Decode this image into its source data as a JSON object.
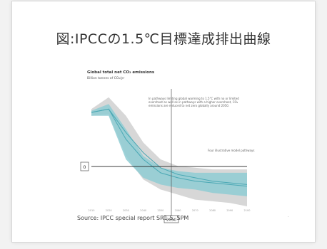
{
  "slide": {
    "title": "図:IPCCの1.5℃目標達成排出曲線",
    "source": "Source: IPCC special report SR1.5, SPM"
  },
  "colors": {
    "teal": "#4aa8b4",
    "teal_band": "#8fcdd4",
    "grey_band": "#d7d7d7",
    "accent_text": "#2a8fa0"
  },
  "chart_data": {
    "type": "area",
    "title": "Global total net CO₂ emissions",
    "ylabel": "Billion tonnes of CO₂/yr",
    "x": [
      2010,
      2020,
      2030,
      2040,
      2050,
      2060,
      2070,
      2080,
      2090,
      2100
    ],
    "xlim": [
      2010,
      2100
    ],
    "ylim": [
      -20,
      50
    ],
    "grid": false,
    "y_reference_label": "0",
    "x_reference_label": "2050",
    "annotation_top": "In pathways limiting global warming to 1.5°C with no or limited overshoot as well as in pathways with a higher overshoot, CO₂ emissions are reduced to net zero globally around 2050.",
    "annotation_four": "Four illustrative model pathways",
    "series": [
      {
        "upper": [
          38,
          45,
          34,
          18,
          8,
          4,
          3,
          2,
          2,
          2
        ],
        "lower": [
          34,
          35,
          10,
          -4,
          -10,
          -13,
          -16,
          -17,
          -18,
          -20
        ]
      },
      {
        "upper": [
          37,
          41,
          26,
          10,
          3,
          1,
          0,
          0,
          0,
          0
        ],
        "lower": [
          34,
          34,
          8,
          -3,
          -7,
          -9,
          -10,
          -12,
          -13,
          -14
        ]
      },
      {
        "values": [
          36,
          38,
          20,
          8,
          0,
          -3,
          -5,
          -6,
          -7,
          -8
        ]
      },
      {
        "values": [
          36,
          38,
          24,
          12,
          3,
          -1,
          -3,
          -5,
          -6,
          -7
        ]
      }
    ]
  }
}
